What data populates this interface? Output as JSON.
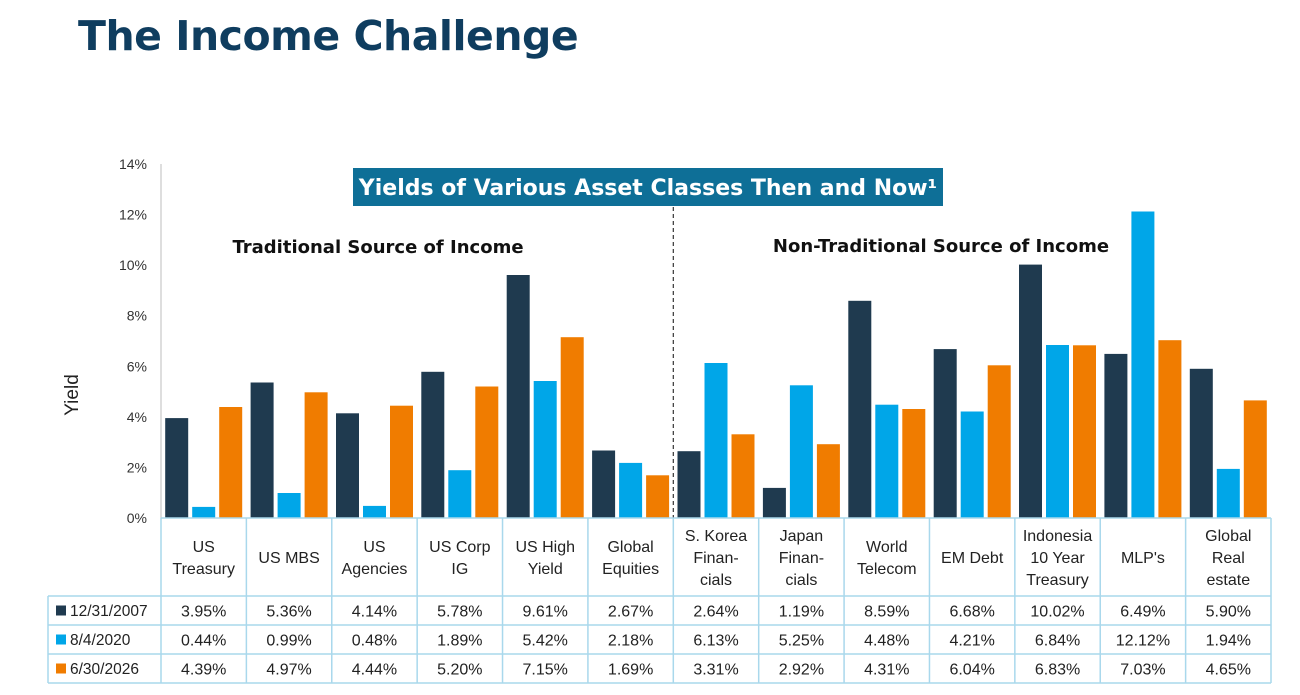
{
  "page": {
    "title": "The Income Challenge"
  },
  "chart_data": {
    "type": "bar",
    "title": "Yields of Various Asset Classes Then and Now¹",
    "ylabel": "Yield",
    "xlabel": "",
    "ylim": [
      0,
      14
    ],
    "yticks": [
      "0%",
      "2%",
      "4%",
      "6%",
      "8%",
      "10%",
      "12%",
      "14%"
    ],
    "grid": false,
    "sections": [
      {
        "label": "Traditional Source of Income",
        "from": 0,
        "to": 5
      },
      {
        "label": "Non-Traditional Source of Income",
        "from": 6,
        "to": 12
      }
    ],
    "categories": [
      [
        "US",
        "Treasury"
      ],
      [
        "US MBS"
      ],
      [
        "US",
        "Agencies"
      ],
      [
        "US Corp",
        "IG"
      ],
      [
        "US High",
        "Yield"
      ],
      [
        "Global",
        "Equities"
      ],
      [
        "S. Korea",
        "Finan-",
        "cials"
      ],
      [
        "Japan",
        "Finan-",
        "cials"
      ],
      [
        "World",
        "Telecom"
      ],
      [
        "EM Debt"
      ],
      [
        "Indonesia",
        "10 Year",
        "Treasury"
      ],
      [
        "MLP's"
      ],
      [
        "Global",
        "Real",
        "estate"
      ]
    ],
    "series": [
      {
        "name": "12/31/2007",
        "color": "#1f3a4f",
        "values": [
          3.95,
          5.36,
          4.14,
          5.78,
          9.61,
          2.67,
          2.64,
          1.19,
          8.59,
          6.68,
          10.02,
          6.49,
          5.9
        ],
        "labels": [
          "3.95%",
          "5.36%",
          "4.14%",
          "5.78%",
          "9.61%",
          "2.67%",
          "2.64%",
          "1.19%",
          "8.59%",
          "6.68%",
          "10.02%",
          "6.49%",
          "5.90%"
        ]
      },
      {
        "name": "8/4/2020",
        "color": "#00a6e8",
        "values": [
          0.44,
          0.99,
          0.48,
          1.89,
          5.42,
          2.18,
          6.13,
          5.25,
          4.48,
          4.21,
          6.84,
          12.12,
          1.94
        ],
        "labels": [
          "0.44%",
          "0.99%",
          "0.48%",
          "1.89%",
          "5.42%",
          "2.18%",
          "6.13%",
          "5.25%",
          "4.48%",
          "4.21%",
          "6.84%",
          "12.12%",
          "1.94%"
        ]
      },
      {
        "name": "6/30/2026",
        "color": "#f07c00",
        "values": [
          4.39,
          4.97,
          4.44,
          5.2,
          7.15,
          1.69,
          3.31,
          2.92,
          4.31,
          6.04,
          6.83,
          7.03,
          4.65
        ],
        "labels": [
          "4.39%",
          "4.97%",
          "4.44%",
          "5.20%",
          "7.15%",
          "1.69%",
          "3.31%",
          "2.92%",
          "4.31%",
          "6.04%",
          "6.83%",
          "7.03%",
          "4.65%"
        ]
      }
    ],
    "colors": {
      "title_bg": "#0e6f97",
      "table_border": "#a9d8ec",
      "axis": "#bdbdbd",
      "divider": "#333333"
    }
  }
}
